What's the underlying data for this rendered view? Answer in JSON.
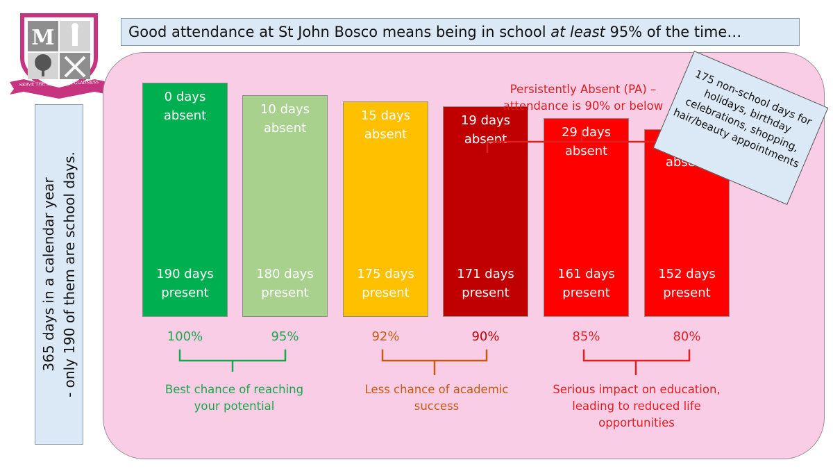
{
  "title": {
    "before": "Good attendance at St John Bosco means being in school ",
    "emphasis": "at least",
    "after": " 95% of the time…"
  },
  "side_note": {
    "line1": "365 days in a calendar year",
    "line2": "- only 190 of them are school days."
  },
  "logo": {
    "motto": "SERVE THE LORD WITH GLADNESS"
  },
  "chart_data": {
    "type": "bar",
    "categories": [
      "100%",
      "95%",
      "92%",
      "90%",
      "85%",
      "80%"
    ],
    "series": [
      {
        "values": [
          190,
          180,
          175,
          171,
          161,
          152
        ]
      }
    ],
    "bars": [
      {
        "absent_label": "0 days absent",
        "present_label": "190 days present",
        "percent": "100%",
        "color": "#00b050",
        "pct_color": "#1aa64a"
      },
      {
        "absent_label": "10 days absent",
        "present_label": "180 days present",
        "percent": "95%",
        "color": "#a9d18e",
        "pct_color": "#1aa64a"
      },
      {
        "absent_label": "15 days absent",
        "present_label": "175 days present",
        "percent": "92%",
        "color": "#ffc000",
        "pct_color": "#c55a11"
      },
      {
        "absent_label": "19 days absent",
        "present_label": "171 days present",
        "percent": "90%",
        "color": "#c00000",
        "pct_color": "#c00000"
      },
      {
        "absent_label": "29 days absent",
        "present_label": "161 days present",
        "percent": "85%",
        "color": "#ff0000",
        "pct_color": "#e02020"
      },
      {
        "absent_label": "38 days absent",
        "present_label": "152 days present",
        "percent": "80%",
        "color": "#ff0000",
        "pct_color": "#e02020"
      }
    ],
    "groups": [
      {
        "label": "Best chance of reaching your potential",
        "color": "#1aa64a"
      },
      {
        "label": "Less chance of academic success",
        "color": "#c55a11"
      },
      {
        "label": "Serious impact on education, leading to reduced life opportunities",
        "color": "#e02020"
      }
    ],
    "pa_label": "Persistently Absent (PA) – attendance is 90% or below",
    "note": "175 non-school days for holidays, birthday celebrations, shopping, hair/beauty appointments"
  }
}
